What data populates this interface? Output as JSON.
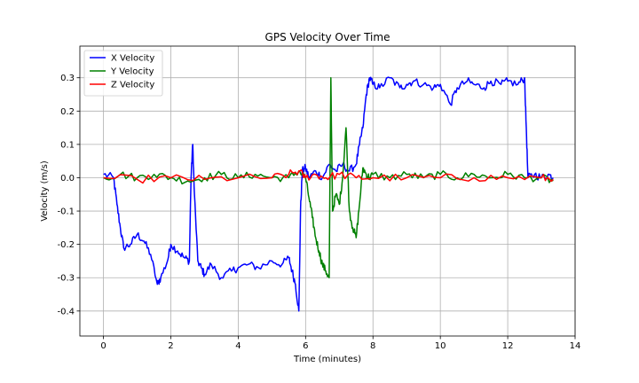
{
  "chart_data": {
    "type": "line",
    "title": "GPS Velocity Over Time",
    "xlabel": "Time (minutes)",
    "ylabel": "Velocity (m/s)",
    "xlim": [
      -0.7,
      14.0
    ],
    "ylim": [
      -0.475,
      0.395
    ],
    "xticks": [
      0,
      2,
      4,
      6,
      8,
      10,
      12,
      14
    ],
    "yticks": [
      -0.4,
      -0.3,
      -0.2,
      -0.1,
      0.0,
      0.1,
      0.2,
      0.3
    ],
    "ytick_labels": [
      "-0.4",
      "-0.3",
      "-0.2",
      "-0.1",
      "0.0",
      "0.1",
      "0.2",
      "0.3"
    ],
    "grid": true,
    "legend_position": "top-left",
    "series": [
      {
        "name": "X Velocity",
        "color": "#0000ff",
        "x": [
          0.0,
          0.3,
          0.4,
          0.5,
          0.6,
          0.8,
          1.0,
          1.2,
          1.4,
          1.6,
          1.7,
          1.9,
          2.0,
          2.2,
          2.4,
          2.55,
          2.6,
          2.65,
          2.7,
          2.8,
          2.9,
          3.0,
          3.2,
          3.5,
          3.8,
          4.0,
          4.3,
          4.6,
          5.0,
          5.3,
          5.5,
          5.6,
          5.7,
          5.8,
          5.85,
          5.9,
          6.0,
          6.1,
          6.3,
          6.5,
          6.7,
          6.9,
          7.1,
          7.3,
          7.5,
          7.6,
          7.7,
          7.8,
          7.9,
          8.0,
          8.2,
          8.5,
          8.8,
          9.0,
          9.2,
          9.5,
          9.8,
          10.0,
          10.3,
          10.5,
          10.8,
          11.0,
          11.3,
          11.5,
          11.8,
          12.0,
          12.3,
          12.5,
          12.55,
          12.6,
          12.8,
          13.0,
          13.2,
          13.35
        ],
        "y": [
          0.01,
          0.0,
          -0.08,
          -0.15,
          -0.21,
          -0.2,
          -0.17,
          -0.19,
          -0.23,
          -0.32,
          -0.3,
          -0.25,
          -0.2,
          -0.22,
          -0.24,
          -0.25,
          0.0,
          0.1,
          -0.05,
          -0.25,
          -0.27,
          -0.29,
          -0.26,
          -0.3,
          -0.28,
          -0.27,
          -0.26,
          -0.27,
          -0.25,
          -0.26,
          -0.24,
          -0.28,
          -0.32,
          -0.4,
          -0.1,
          0.02,
          0.03,
          0.0,
          0.02,
          0.0,
          0.04,
          0.02,
          0.04,
          0.02,
          0.04,
          0.1,
          0.15,
          0.25,
          0.3,
          0.28,
          0.27,
          0.3,
          0.27,
          0.28,
          0.29,
          0.28,
          0.27,
          0.28,
          0.22,
          0.27,
          0.29,
          0.28,
          0.27,
          0.29,
          0.28,
          0.29,
          0.28,
          0.3,
          0.15,
          0.0,
          0.01,
          0.0,
          0.01,
          0.0
        ],
        "noise": 0.012
      },
      {
        "name": "Y Velocity",
        "color": "#008000",
        "x": [
          0.0,
          0.5,
          1.0,
          1.5,
          2.0,
          2.5,
          3.0,
          3.5,
          4.0,
          4.5,
          5.0,
          5.5,
          5.8,
          6.0,
          6.1,
          6.2,
          6.3,
          6.4,
          6.5,
          6.6,
          6.7,
          6.75,
          6.8,
          6.9,
          7.0,
          7.1,
          7.2,
          7.3,
          7.4,
          7.5,
          7.6,
          7.7,
          7.8,
          7.9,
          8.0,
          8.5,
          9.0,
          9.5,
          10.0,
          10.5,
          11.0,
          11.5,
          12.0,
          12.5,
          13.0,
          13.35
        ],
        "y": [
          0.0,
          0.01,
          0.0,
          0.01,
          0.0,
          -0.01,
          0.0,
          0.01,
          0.0,
          0.01,
          0.0,
          0.0,
          0.02,
          0.0,
          -0.06,
          -0.12,
          -0.18,
          -0.22,
          -0.26,
          -0.28,
          -0.3,
          0.3,
          -0.1,
          -0.05,
          -0.08,
          0.0,
          0.15,
          -0.1,
          -0.15,
          -0.18,
          -0.08,
          0.03,
          0.01,
          0.0,
          0.01,
          0.0,
          0.01,
          0.0,
          0.01,
          0.0,
          0.01,
          0.0,
          0.01,
          0.0,
          0.0,
          -0.01
        ],
        "noise": 0.012
      },
      {
        "name": "Z Velocity",
        "color": "#ff0000",
        "x": [
          0.0,
          1.0,
          2.0,
          3.0,
          4.0,
          5.0,
          5.5,
          5.8,
          6.0,
          6.3,
          6.6,
          7.0,
          7.5,
          8.0,
          9.0,
          10.0,
          11.0,
          12.0,
          13.0,
          13.35
        ],
        "y": [
          0.0,
          -0.005,
          0.0,
          -0.005,
          0.0,
          0.0,
          0.01,
          0.02,
          0.0,
          0.01,
          0.0,
          0.01,
          0.0,
          0.0,
          0.0,
          0.0,
          0.0,
          0.0,
          0.0,
          -0.005
        ],
        "noise": 0.012
      }
    ]
  }
}
